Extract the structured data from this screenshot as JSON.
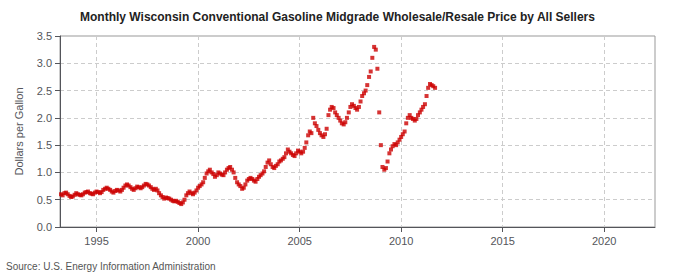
{
  "chart_data": {
    "type": "scatter",
    "title": "Monthly Wisconsin Conventional Gasoline Midgrade Wholesale/Resale Price by All Sellers",
    "ylabel": "Dollars per Gallon",
    "annotations": [
      "Source: U.S. Energy Information Administration"
    ],
    "color": "#cc0000",
    "marker": "square",
    "grid": true,
    "xlim": [
      1993.2,
      2022.5
    ],
    "ylim": [
      0.0,
      3.5
    ],
    "xticks": [
      1995,
      2000,
      2005,
      2010,
      2015,
      2020
    ],
    "yticks": [
      {
        "value": 0.0,
        "label": "0.0"
      },
      0.5,
      {
        "value": 1.0,
        "label": "1.0"
      },
      1.5,
      {
        "value": 2.0,
        "label": "2.0"
      },
      2.5,
      {
        "value": 3.0,
        "label": "3.0"
      },
      3.5
    ],
    "x": [
      1993.25,
      1993.33,
      1993.42,
      1993.5,
      1993.58,
      1993.67,
      1993.75,
      1993.83,
      1993.92,
      1994.0,
      1994.08,
      1994.17,
      1994.25,
      1994.33,
      1994.42,
      1994.5,
      1994.58,
      1994.67,
      1994.75,
      1994.83,
      1994.92,
      1995.0,
      1995.08,
      1995.17,
      1995.25,
      1995.33,
      1995.42,
      1995.5,
      1995.58,
      1995.67,
      1995.75,
      1995.83,
      1995.92,
      1996.0,
      1996.08,
      1996.17,
      1996.25,
      1996.33,
      1996.42,
      1996.5,
      1996.58,
      1996.67,
      1996.75,
      1996.83,
      1996.92,
      1997.0,
      1997.08,
      1997.17,
      1997.25,
      1997.33,
      1997.42,
      1997.5,
      1997.58,
      1997.67,
      1997.75,
      1997.83,
      1997.92,
      1998.0,
      1998.08,
      1998.17,
      1998.25,
      1998.33,
      1998.42,
      1998.5,
      1998.58,
      1998.67,
      1998.75,
      1998.83,
      1998.92,
      1999.0,
      1999.08,
      1999.17,
      1999.25,
      1999.33,
      1999.42,
      1999.5,
      1999.58,
      1999.67,
      1999.75,
      1999.83,
      1999.92,
      2000.0,
      2000.08,
      2000.17,
      2000.25,
      2000.33,
      2000.42,
      2000.5,
      2000.58,
      2000.67,
      2000.75,
      2000.83,
      2000.92,
      2001.0,
      2001.08,
      2001.17,
      2001.25,
      2001.33,
      2001.42,
      2001.5,
      2001.58,
      2001.67,
      2001.75,
      2001.83,
      2001.92,
      2002.0,
      2002.08,
      2002.17,
      2002.25,
      2002.33,
      2002.42,
      2002.5,
      2002.58,
      2002.67,
      2002.75,
      2002.83,
      2002.92,
      2003.0,
      2003.08,
      2003.17,
      2003.25,
      2003.33,
      2003.42,
      2003.5,
      2003.58,
      2003.67,
      2003.75,
      2003.83,
      2003.92,
      2004.0,
      2004.08,
      2004.17,
      2004.25,
      2004.33,
      2004.42,
      2004.5,
      2004.58,
      2004.67,
      2004.75,
      2004.83,
      2004.92,
      2005.0,
      2005.08,
      2005.17,
      2005.25,
      2005.33,
      2005.42,
      2005.5,
      2005.58,
      2005.67,
      2005.75,
      2005.83,
      2005.92,
      2006.0,
      2006.08,
      2006.17,
      2006.25,
      2006.33,
      2006.42,
      2006.5,
      2006.58,
      2006.67,
      2006.75,
      2006.83,
      2006.92,
      2007.0,
      2007.08,
      2007.17,
      2007.25,
      2007.33,
      2007.42,
      2007.5,
      2007.58,
      2007.67,
      2007.75,
      2007.83,
      2007.92,
      2008.0,
      2008.08,
      2008.17,
      2008.25,
      2008.33,
      2008.42,
      2008.5,
      2008.58,
      2008.67,
      2008.75,
      2008.83,
      2008.92,
      2009.0,
      2009.08,
      2009.17,
      2009.25,
      2009.33,
      2009.42,
      2009.5,
      2009.58,
      2009.67,
      2009.75,
      2009.83,
      2009.92,
      2010.0,
      2010.08,
      2010.17,
      2010.25,
      2010.33,
      2010.42,
      2010.5,
      2010.58,
      2010.67,
      2010.75,
      2010.83,
      2010.92,
      2011.0,
      2011.08,
      2011.17,
      2011.25,
      2011.33,
      2011.42,
      2011.5,
      2011.58,
      2011.67
    ],
    "values": [
      0.6,
      0.58,
      0.62,
      0.63,
      0.6,
      0.57,
      0.55,
      0.56,
      0.59,
      0.62,
      0.6,
      0.59,
      0.58,
      0.6,
      0.63,
      0.64,
      0.65,
      0.62,
      0.61,
      0.6,
      0.63,
      0.65,
      0.64,
      0.62,
      0.64,
      0.68,
      0.7,
      0.72,
      0.7,
      0.68,
      0.65,
      0.63,
      0.66,
      0.68,
      0.67,
      0.65,
      0.68,
      0.72,
      0.76,
      0.78,
      0.76,
      0.73,
      0.7,
      0.68,
      0.71,
      0.74,
      0.73,
      0.71,
      0.73,
      0.76,
      0.79,
      0.78,
      0.76,
      0.73,
      0.7,
      0.68,
      0.7,
      0.67,
      0.62,
      0.58,
      0.55,
      0.52,
      0.54,
      0.53,
      0.52,
      0.5,
      0.48,
      0.47,
      0.48,
      0.46,
      0.44,
      0.42,
      0.45,
      0.5,
      0.58,
      0.62,
      0.65,
      0.62,
      0.6,
      0.63,
      0.67,
      0.72,
      0.75,
      0.78,
      0.82,
      0.9,
      0.98,
      1.02,
      1.05,
      1.0,
      0.97,
      0.92,
      0.95,
      1.0,
      0.98,
      0.96,
      0.95,
      1.0,
      1.05,
      1.08,
      1.1,
      1.05,
      1.0,
      0.9,
      0.82,
      0.78,
      0.75,
      0.7,
      0.72,
      0.78,
      0.85,
      0.88,
      0.9,
      0.88,
      0.85,
      0.83,
      0.88,
      0.92,
      0.95,
      0.98,
      1.02,
      1.1,
      1.18,
      1.22,
      1.15,
      1.1,
      1.08,
      1.12,
      1.15,
      1.2,
      1.22,
      1.25,
      1.28,
      1.35,
      1.42,
      1.38,
      1.35,
      1.32,
      1.3,
      1.35,
      1.4,
      1.38,
      1.35,
      1.38,
      1.45,
      1.55,
      1.68,
      1.75,
      1.72,
      2.0,
      1.9,
      1.85,
      1.78,
      1.72,
      1.68,
      1.65,
      1.7,
      1.8,
      2.05,
      2.15,
      2.2,
      2.18,
      2.1,
      2.05,
      2.0,
      1.95,
      1.9,
      1.88,
      1.92,
      2.0,
      2.1,
      2.2,
      2.25,
      2.22,
      2.18,
      2.15,
      2.2,
      2.3,
      2.4,
      2.45,
      2.5,
      2.6,
      2.75,
      2.85,
      3.1,
      3.3,
      3.25,
      2.9,
      2.1,
      1.5,
      1.1,
      1.05,
      1.08,
      1.2,
      1.35,
      1.42,
      1.48,
      1.52,
      1.5,
      1.55,
      1.6,
      1.65,
      1.7,
      1.75,
      1.9,
      2.0,
      2.05,
      2.0,
      1.98,
      1.95,
      1.98,
      2.05,
      2.1,
      2.15,
      2.2,
      2.25,
      2.4,
      2.55,
      2.62,
      2.6,
      2.58,
      2.55
    ]
  }
}
